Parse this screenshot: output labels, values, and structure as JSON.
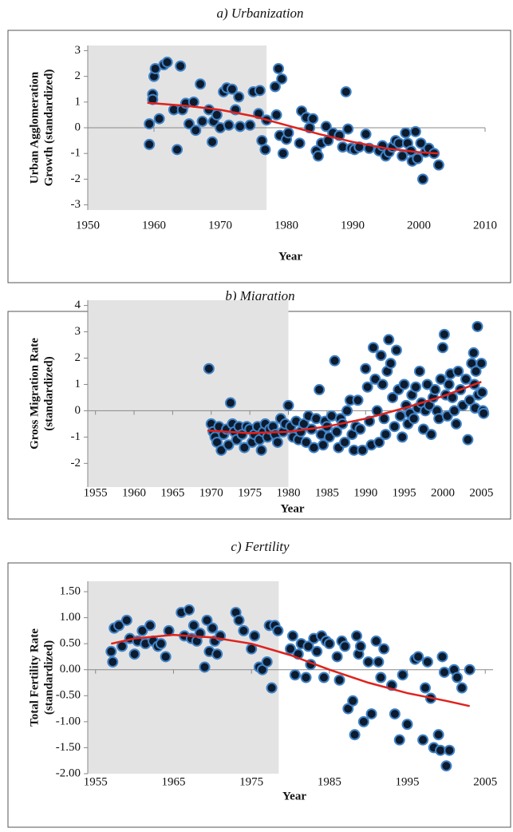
{
  "chart_data": [
    {
      "type": "scatter",
      "title": "a) Urbanization",
      "xlabel": "Year",
      "ylabel": [
        "Urban Agglomeration",
        "Growth (standardized)"
      ],
      "xlim": [
        1950,
        2010
      ],
      "xticks": [
        1950,
        1960,
        1970,
        1980,
        1990,
        2000,
        2010
      ],
      "ylim": [
        -3.2,
        3.2
      ],
      "yticks": [
        -3,
        -2,
        -1,
        0,
        1,
        2,
        3
      ],
      "zero_line": true,
      "shaded_region": [
        1950,
        1977
      ],
      "shade_color": "#e3e3e3",
      "marker_color": "#0d1b2e",
      "marker_edge": "#3f82c6",
      "x": [
        1959.3,
        1959.3,
        1959.8,
        1959.8,
        1960,
        1960.2,
        1960.8,
        1961.5,
        1962,
        1963,
        1963.5,
        1964,
        1964.3,
        1964.8,
        1965.3,
        1966,
        1966.3,
        1967,
        1967.3,
        1968.3,
        1968.8,
        1969,
        1969.5,
        1970,
        1970.5,
        1971,
        1971.3,
        1971.8,
        1972.3,
        1972.8,
        1973,
        1974.5,
        1975,
        1975.8,
        1976,
        1976.3,
        1976.8,
        1977,
        1978.3,
        1978.5,
        1978.8,
        1979,
        1979.3,
        1979.5,
        1980,
        1980.3,
        1982.3,
        1982,
        1983,
        1983.5,
        1984,
        1984.5,
        1984.8,
        1985.3,
        1986,
        1986.3,
        1987,
        1988,
        1988.5,
        1989,
        1989.3,
        1989.8,
        1990.3,
        1991,
        1992,
        1992.5,
        1994,
        1994.5,
        1995,
        1995.5,
        1996,
        1996.5,
        1997,
        1997.5,
        1998,
        1998.3,
        1998.8,
        1999,
        1999.5,
        1999.8,
        2000.3,
        2000.6,
        2001,
        2001.5,
        2002.3,
        2003
      ],
      "values": [
        0.15,
        -0.65,
        1.3,
        1.1,
        2.0,
        2.3,
        0.35,
        2.45,
        2.55,
        0.7,
        -0.85,
        2.4,
        0.7,
        0.95,
        0.15,
        1.0,
        -0.1,
        1.7,
        0.25,
        0.7,
        -0.55,
        0.25,
        0.5,
        0.0,
        1.4,
        1.55,
        0.1,
        1.5,
        0.7,
        1.2,
        0.05,
        0.1,
        1.4,
        0.55,
        1.45,
        -0.5,
        -0.85,
        0.3,
        1.6,
        0.5,
        2.3,
        -0.3,
        1.9,
        -1.0,
        -0.45,
        -0.2,
        0.65,
        -0.6,
        0.4,
        0.0,
        0.35,
        -0.9,
        -1.1,
        -0.6,
        0.05,
        -0.5,
        -0.2,
        -0.3,
        -0.75,
        1.4,
        -0.05,
        -0.8,
        -0.85,
        -0.75,
        -0.25,
        -0.8,
        -0.9,
        -0.7,
        -1.1,
        -0.95,
        -0.75,
        -0.5,
        -0.6,
        -1.1,
        -0.2,
        -0.6,
        -0.9,
        -1.3,
        -0.15,
        -1.2,
        -0.6,
        -2.0,
        -0.95,
        -0.8,
        -1.0,
        -1.45
      ],
      "trend": {
        "color": "#e0221c",
        "x": [
          1959,
          1965,
          1970,
          1975,
          1980,
          1985,
          1990,
          1995,
          2000,
          2003
        ],
        "values": [
          0.97,
          0.85,
          0.7,
          0.45,
          0.1,
          -0.25,
          -0.55,
          -0.8,
          -0.95,
          -1.0
        ]
      }
    },
    {
      "type": "scatter",
      "title": "b) Migration",
      "xlabel": "Year",
      "ylabel": [
        "Gross Migration Rate",
        "(standardized)"
      ],
      "xlim": [
        1954,
        2006
      ],
      "xticks": [
        1955,
        1960,
        1965,
        1970,
        1975,
        1980,
        1985,
        1990,
        1995,
        2000,
        2005
      ],
      "ylim": [
        -2.9,
        4.2
      ],
      "yticks": [
        -2,
        -1,
        0,
        1,
        2,
        3,
        4
      ],
      "zero_line": true,
      "shaded_region": [
        1954,
        1980
      ],
      "shade_color": "#e3e3e3",
      "marker_color": "#0d1b2e",
      "marker_edge": "#3f82c6",
      "x": [
        1969.7,
        1970,
        1970.25,
        1970.5,
        1970.75,
        1971,
        1971.3,
        1971.6,
        1972,
        1972.25,
        1972.5,
        1972.75,
        1973,
        1973.3,
        1973.6,
        1974,
        1974.3,
        1974.6,
        1975,
        1975.3,
        1975.6,
        1976,
        1976.25,
        1976.5,
        1976.75,
        1977,
        1977.3,
        1977.6,
        1978,
        1978.3,
        1978.6,
        1979,
        1979.3,
        1979.6,
        1980,
        1980.3,
        1980.6,
        1981,
        1981.3,
        1981.6,
        1982,
        1982.3,
        1982.6,
        1983,
        1983.3,
        1983.6,
        1984,
        1984.25,
        1984.5,
        1984.75,
        1985,
        1985.3,
        1985.6,
        1986,
        1986.25,
        1986.5,
        1986.75,
        1987,
        1987.3,
        1987.6,
        1988,
        1988.25,
        1988.5,
        1988.75,
        1989,
        1989.3,
        1989.6,
        1990,
        1990.25,
        1990.5,
        1990.75,
        1991,
        1991.25,
        1991.5,
        1991.75,
        1992,
        1992.2,
        1992.4,
        1992.6,
        1992.8,
        1993,
        1993.25,
        1993.5,
        1993.75,
        1994,
        1994.25,
        1994.5,
        1994.75,
        1995,
        1995.25,
        1995.5,
        1995.75,
        1996,
        1996.25,
        1996.5,
        1996.75,
        1997,
        1997.25,
        1997.5,
        1997.75,
        1998,
        1998.25,
        1998.5,
        1998.75,
        1999,
        1999.25,
        1999.5,
        1999.75,
        2000,
        2000.2,
        2000.4,
        2000.6,
        2000.8,
        2001,
        2001.25,
        2001.5,
        2001.75,
        2002,
        2002.3,
        2002.6,
        2003,
        2003.25,
        2003.5,
        2003.75,
        2004,
        2004.1,
        2004.2,
        2004.3,
        2004.5,
        2004.6,
        2005,
        2005.1,
        2005.2,
        2005.3
      ],
      "values": [
        1.6,
        -0.5,
        -0.8,
        -1.0,
        -1.2,
        -0.6,
        -1.5,
        -0.9,
        -0.7,
        -1.3,
        0.3,
        -0.5,
        -0.8,
        -1.1,
        -0.6,
        -0.9,
        -1.4,
        -0.6,
        -0.7,
        -1.2,
        -0.9,
        -0.6,
        -1.1,
        -1.5,
        -0.8,
        -0.5,
        -1.0,
        -0.7,
        -0.6,
        -0.9,
        -1.2,
        -0.3,
        -0.8,
        -0.5,
        0.2,
        -0.6,
        -1.0,
        -0.4,
        -1.1,
        -0.8,
        -0.5,
        -1.2,
        -0.2,
        -0.7,
        -1.4,
        -0.3,
        0.8,
        -0.9,
        -1.3,
        -0.4,
        -0.6,
        -1.0,
        -0.2,
        1.9,
        -0.8,
        -1.4,
        -0.3,
        -0.5,
        -1.2,
        0.0,
        0.4,
        -0.9,
        -1.5,
        -0.6,
        0.4,
        -0.7,
        -1.5,
        1.6,
        0.9,
        -0.4,
        -1.3,
        2.4,
        1.2,
        0.0,
        -1.2,
        2.1,
        1.0,
        -0.3,
        -0.9,
        1.5,
        2.7,
        1.8,
        0.5,
        -0.6,
        2.3,
        0.8,
        -0.2,
        -1.0,
        1.0,
        0.2,
        -0.5,
        -0.1,
        0.6,
        -0.3,
        0.9,
        0.1,
        1.5,
        0.3,
        -0.7,
        0.0,
        1.0,
        0.2,
        -0.9,
        0.5,
        0.8,
        0.0,
        -0.3,
        1.2,
        2.4,
        2.9,
        0.6,
        -0.2,
        1.0,
        1.4,
        0.5,
        0.0,
        -0.5,
        1.5,
        0.8,
        0.2,
        1.2,
        -1.1,
        0.4,
        1.8,
        2.2,
        1.0,
        0.1,
        1.5,
        3.2,
        0.6,
        1.8,
        0.7,
        0.0,
        -0.1
      ],
      "trend": {
        "color": "#e0221c",
        "x": [
          1969.5,
          1975,
          1980,
          1985,
          1990,
          1995,
          2000,
          2005
        ],
        "values": [
          -0.75,
          -0.85,
          -0.8,
          -0.6,
          -0.3,
          0.1,
          0.55,
          1.1
        ]
      }
    },
    {
      "type": "scatter",
      "title": "c) Fertility",
      "xlabel": "Year",
      "ylabel": [
        "Total Fertility Rate",
        "(standardized)"
      ],
      "xlim": [
        1954,
        2006
      ],
      "xticks": [
        1955,
        1965,
        1975,
        1985,
        1995,
        2005
      ],
      "ylim": [
        -2.0,
        1.7
      ],
      "yticks": [
        {
          "value": -2,
          "label": "-2.00"
        },
        {
          "value": -1.5,
          "label": "-1.50"
        },
        {
          "value": -1,
          "label": "-1.00"
        },
        {
          "value": -0.5,
          "label": "-0.50"
        },
        {
          "value": 0,
          "label": "0.00"
        },
        {
          "value": 0.5,
          "label": "0.50"
        },
        {
          "value": 1,
          "label": "1.00"
        },
        {
          "value": 1.5,
          "label": "1.50"
        }
      ],
      "zero_line": true,
      "shaded_region": [
        1954,
        1978.5
      ],
      "shade_color": "#e3e3e3",
      "marker_color": "#0d1b2e",
      "marker_edge": "#3f82c6",
      "x": [
        1957,
        1957.2,
        1957.4,
        1958,
        1958.4,
        1959,
        1959.4,
        1960,
        1960.4,
        1961,
        1961.4,
        1962,
        1962.4,
        1963,
        1963.4,
        1964,
        1964.4,
        1966,
        1966.4,
        1967,
        1967.3,
        1967.6,
        1968,
        1968.4,
        1969,
        1969.3,
        1969.6,
        1970,
        1970.3,
        1970.6,
        1971,
        1973,
        1973.4,
        1974,
        1975,
        1975.4,
        1976,
        1976.4,
        1977,
        1977.3,
        1977.6,
        1978,
        1978.4,
        1980,
        1980.3,
        1980.6,
        1981,
        1981.4,
        1982,
        1982.3,
        1982.6,
        1983,
        1983.4,
        1984,
        1984.3,
        1984.6,
        1985,
        1986,
        1986.3,
        1986.6,
        1987,
        1987.4,
        1988,
        1988.25,
        1988.5,
        1988.75,
        1989,
        1989.4,
        1990,
        1990.4,
        1991,
        1991.3,
        1991.6,
        1992,
        1993,
        1993.4,
        1994,
        1994.4,
        1995,
        1996,
        1996.4,
        1997,
        1997.3,
        1997.6,
        1998,
        1998.4,
        1999,
        1999.25,
        1999.5,
        1999.75,
        2000,
        2000.4,
        2001,
        2001.4,
        2002,
        2003
      ],
      "values": [
        0.35,
        0.15,
        0.8,
        0.85,
        0.45,
        0.95,
        0.6,
        0.3,
        0.55,
        0.75,
        0.5,
        0.85,
        0.55,
        0.45,
        0.5,
        0.25,
        0.75,
        1.1,
        0.65,
        1.15,
        0.6,
        0.85,
        0.55,
        0.7,
        0.05,
        0.95,
        0.35,
        0.8,
        0.55,
        0.3,
        0.65,
        1.1,
        0.95,
        0.75,
        0.4,
        0.65,
        0.05,
        0.0,
        0.15,
        0.85,
        -0.35,
        0.85,
        0.75,
        0.4,
        0.65,
        -0.1,
        0.3,
        0.5,
        -0.15,
        0.45,
        0.1,
        0.6,
        0.35,
        0.65,
        -0.15,
        0.55,
        0.5,
        0.25,
        -0.2,
        0.55,
        0.45,
        -0.75,
        -0.6,
        -1.25,
        0.65,
        0.3,
        0.45,
        -1.0,
        0.15,
        -0.85,
        0.55,
        0.15,
        -0.15,
        0.4,
        -0.3,
        -0.85,
        -1.35,
        -0.1,
        -1.05,
        0.2,
        0.25,
        -1.35,
        -0.35,
        0.15,
        -0.55,
        -1.5,
        -1.25,
        -1.55,
        0.25,
        -0.05,
        -1.85,
        -1.55,
        0.0,
        -0.15,
        -0.35,
        0.0
      ],
      "trend": {
        "color": "#e0221c",
        "x": [
          1957,
          1960,
          1965,
          1970,
          1975,
          1980,
          1985,
          1990,
          1995,
          2000,
          2003
        ],
        "values": [
          0.5,
          0.6,
          0.67,
          0.62,
          0.5,
          0.28,
          0.0,
          -0.25,
          -0.45,
          -0.6,
          -0.7
        ]
      }
    }
  ]
}
